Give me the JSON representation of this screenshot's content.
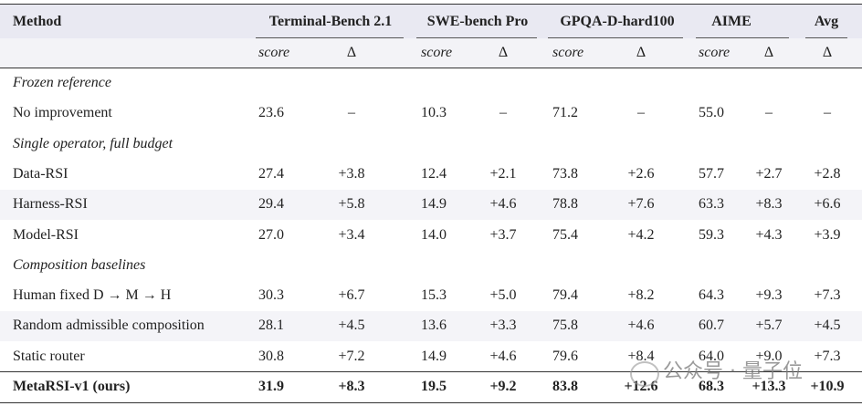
{
  "header": {
    "method": "Method",
    "groups": [
      "Terminal-Bench 2.1",
      "SWE-bench Pro",
      "GPQA-D-hard100",
      "AIME",
      "Avg"
    ],
    "sub": [
      "score",
      "Δ",
      "score",
      "Δ",
      "score",
      "Δ",
      "score",
      "Δ",
      "Δ"
    ]
  },
  "rows": [
    {
      "section": "Frozen reference"
    },
    {
      "method": "No improvement",
      "cells": [
        "23.6",
        "–",
        "10.3",
        "–",
        "71.2",
        "–",
        "55.0",
        "–",
        "–"
      ]
    },
    {
      "section": "Single operator, full budget"
    },
    {
      "method": "Data-RSI",
      "cells": [
        "27.4",
        "+3.8",
        "12.4",
        "+2.1",
        "73.8",
        "+2.6",
        "57.7",
        "+2.7",
        "+2.8"
      ]
    },
    {
      "method": "Harness-RSI",
      "cells": [
        "29.4",
        "+5.8",
        "14.9",
        "+4.6",
        "78.8",
        "+7.6",
        "63.3",
        "+8.3",
        "+6.6"
      ]
    },
    {
      "method": "Model-RSI",
      "cells": [
        "27.0",
        "+3.4",
        "14.0",
        "+3.7",
        "75.4",
        "+4.2",
        "59.3",
        "+4.3",
        "+3.9"
      ]
    },
    {
      "section": "Composition baselines"
    },
    {
      "method": "Human fixed D → M → H",
      "cells": [
        "30.3",
        "+6.7",
        "15.3",
        "+5.0",
        "79.4",
        "+8.2",
        "64.3",
        "+9.3",
        "+7.3"
      ]
    },
    {
      "method": "Random admissible composition",
      "cells": [
        "28.1",
        "+4.5",
        "13.6",
        "+3.3",
        "75.8",
        "+4.6",
        "60.7",
        "+5.7",
        "+4.5"
      ]
    },
    {
      "method": "Static router",
      "cells": [
        "30.8",
        "+7.2",
        "14.9",
        "+4.6",
        "79.6",
        "+8.4",
        "64.0",
        "+9.0",
        "+7.3"
      ]
    },
    {
      "method": "MetaRSI-v1 (ours)",
      "cells": [
        "31.9",
        "+8.3",
        "19.5",
        "+9.2",
        "83.8",
        "+12.6",
        "68.3",
        "+13.3",
        "+10.9"
      ]
    }
  ],
  "watermark": "公众号 · 量子位"
}
